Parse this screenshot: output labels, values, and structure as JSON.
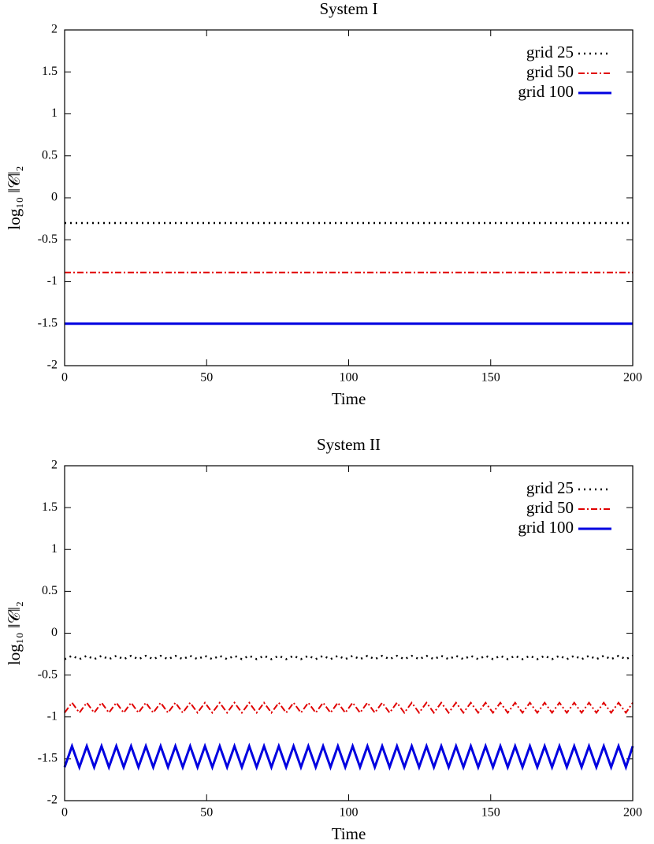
{
  "chart_data": [
    {
      "type": "line",
      "title": "System I",
      "xlabel": "Time",
      "ylabel": "log₁₀ ‖𝒞‖₂",
      "x": [
        0,
        200
      ],
      "series": [
        {
          "name": "grid 25",
          "color": "#000000",
          "linestyle": "dotted",
          "values": [
            -0.3,
            -0.3
          ]
        },
        {
          "name": "grid 50",
          "color": "#e00000",
          "linestyle": "dashdot",
          "values": [
            -0.89,
            -0.89
          ]
        },
        {
          "name": "grid 100",
          "color": "#0000e0",
          "linestyle": "solid",
          "values": [
            -1.5,
            -1.5
          ]
        }
      ],
      "xlim": [
        0,
        200
      ],
      "xticks": [
        0,
        50,
        100,
        150,
        200
      ],
      "ylim": [
        -2,
        2
      ],
      "yticks": [
        -2,
        -1.5,
        -1,
        -0.5,
        0,
        0.5,
        1,
        1.5,
        2
      ],
      "grid": false,
      "legend": "top-right"
    },
    {
      "type": "line",
      "title": "System II",
      "xlabel": "Time",
      "ylabel": "log₁₀ ‖𝒞‖₂",
      "x": [
        0,
        2.6,
        5.2,
        7.8,
        10.4,
        13,
        15.6,
        18.2,
        20.8,
        23.4,
        26,
        28.6,
        31.2,
        33.8,
        36.4,
        39,
        41.6,
        44.2,
        46.8,
        49.4,
        52,
        54.6,
        57.2,
        59.8,
        62.4,
        65,
        67.6,
        70.2,
        72.8,
        75.4,
        78,
        80.6,
        83.2,
        85.8,
        88.4,
        91,
        93.6,
        96.2,
        98.8,
        101.4,
        104,
        106.6,
        109.2,
        111.8,
        114.4,
        117,
        119.6,
        122.2,
        124.8,
        127.4,
        130,
        132.6,
        135.2,
        137.8,
        140.4,
        143,
        145.6,
        148.2,
        150.8,
        153.4,
        156,
        158.6,
        161.2,
        163.8,
        166.4,
        169,
        171.6,
        174.2,
        176.8,
        179.4,
        182,
        184.6,
        187.2,
        189.8,
        192.4,
        195,
        197.6,
        200
      ],
      "series": [
        {
          "name": "grid 25",
          "color": "#000000",
          "linestyle": "dotted",
          "values": [
            -0.31,
            -0.27,
            -0.31,
            -0.27,
            -0.31,
            -0.27,
            -0.31,
            -0.27,
            -0.31,
            -0.27,
            -0.31,
            -0.27,
            -0.31,
            -0.27,
            -0.31,
            -0.27,
            -0.31,
            -0.27,
            -0.31,
            -0.27,
            -0.31,
            -0.27,
            -0.31,
            -0.27,
            -0.31,
            -0.27,
            -0.31,
            -0.27,
            -0.31,
            -0.27,
            -0.31,
            -0.27,
            -0.31,
            -0.27,
            -0.31,
            -0.27,
            -0.31,
            -0.27,
            -0.31,
            -0.27,
            -0.31,
            -0.27,
            -0.31,
            -0.27,
            -0.31,
            -0.27,
            -0.31,
            -0.27,
            -0.31,
            -0.27,
            -0.31,
            -0.27,
            -0.31,
            -0.27,
            -0.31,
            -0.27,
            -0.31,
            -0.27,
            -0.31,
            -0.27,
            -0.31,
            -0.27,
            -0.31,
            -0.27,
            -0.31,
            -0.27,
            -0.31,
            -0.27,
            -0.31,
            -0.27,
            -0.31,
            -0.27,
            -0.31,
            -0.27,
            -0.31,
            -0.27,
            -0.31,
            -0.27
          ]
        },
        {
          "name": "grid 50",
          "color": "#e00000",
          "linestyle": "dashdot",
          "values": [
            -0.95,
            -0.83,
            -0.95,
            -0.83,
            -0.95,
            -0.83,
            -0.95,
            -0.83,
            -0.95,
            -0.83,
            -0.95,
            -0.83,
            -0.95,
            -0.83,
            -0.95,
            -0.83,
            -0.95,
            -0.83,
            -0.95,
            -0.83,
            -0.95,
            -0.83,
            -0.95,
            -0.83,
            -0.95,
            -0.83,
            -0.95,
            -0.83,
            -0.95,
            -0.83,
            -0.95,
            -0.83,
            -0.95,
            -0.83,
            -0.95,
            -0.83,
            -0.95,
            -0.83,
            -0.95,
            -0.83,
            -0.95,
            -0.83,
            -0.95,
            -0.83,
            -0.95,
            -0.83,
            -0.95,
            -0.83,
            -0.95,
            -0.83,
            -0.95,
            -0.83,
            -0.95,
            -0.83,
            -0.95,
            -0.83,
            -0.95,
            -0.83,
            -0.95,
            -0.83,
            -0.95,
            -0.83,
            -0.95,
            -0.83,
            -0.95,
            -0.83,
            -0.95,
            -0.83,
            -0.95,
            -0.83,
            -0.95,
            -0.83,
            -0.95,
            -0.83,
            -0.95,
            -0.83,
            -0.95,
            -0.83
          ]
        },
        {
          "name": "grid 100",
          "color": "#0000e0",
          "linestyle": "solid",
          "values": [
            -1.6,
            -1.35,
            -1.6,
            -1.35,
            -1.6,
            -1.35,
            -1.6,
            -1.35,
            -1.6,
            -1.35,
            -1.6,
            -1.35,
            -1.6,
            -1.35,
            -1.6,
            -1.35,
            -1.6,
            -1.35,
            -1.6,
            -1.35,
            -1.6,
            -1.35,
            -1.6,
            -1.35,
            -1.6,
            -1.35,
            -1.6,
            -1.35,
            -1.6,
            -1.35,
            -1.6,
            -1.35,
            -1.6,
            -1.35,
            -1.6,
            -1.35,
            -1.6,
            -1.35,
            -1.6,
            -1.35,
            -1.6,
            -1.35,
            -1.6,
            -1.35,
            -1.6,
            -1.35,
            -1.6,
            -1.35,
            -1.6,
            -1.35,
            -1.6,
            -1.35,
            -1.6,
            -1.35,
            -1.6,
            -1.35,
            -1.6,
            -1.35,
            -1.6,
            -1.35,
            -1.6,
            -1.35,
            -1.6,
            -1.35,
            -1.6,
            -1.35,
            -1.6,
            -1.35,
            -1.6,
            -1.35,
            -1.6,
            -1.35,
            -1.6,
            -1.35,
            -1.6,
            -1.35,
            -1.6,
            -1.35
          ]
        }
      ],
      "xlim": [
        0,
        200
      ],
      "xticks": [
        0,
        50,
        100,
        150,
        200
      ],
      "ylim": [
        -2,
        2
      ],
      "yticks": [
        -2,
        -1.5,
        -1,
        -0.5,
        0,
        0.5,
        1,
        1.5,
        2
      ],
      "grid": false,
      "legend": "top-right"
    }
  ]
}
